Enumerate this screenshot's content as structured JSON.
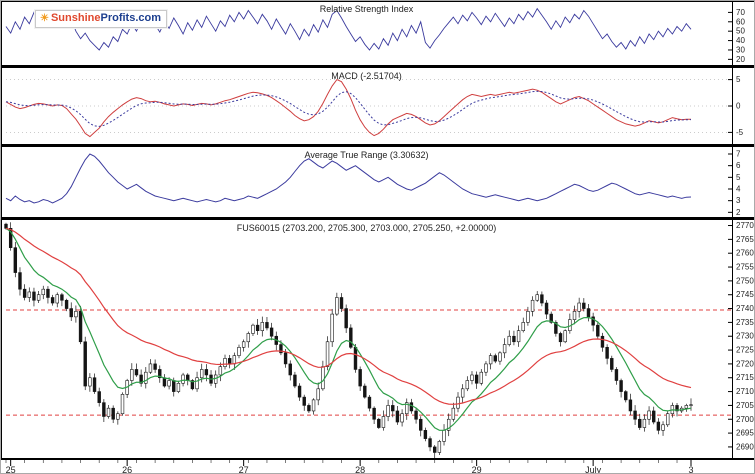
{
  "logo": {
    "part1": "Sunshine",
    "part2": "Profits.com",
    "sun": "☀"
  },
  "colors": {
    "rsi_line": "#3b3b9e",
    "macd_line": "#cf3f3f",
    "macd_signal": "#3b3b9e",
    "atr_line": "#3b3b9e",
    "candle_up": "#ffffff",
    "candle_down": "#151515",
    "candle_stroke": "#151515",
    "ema_fast": "#2f9e49",
    "ema_slow": "#e04040",
    "level": "#e04040",
    "grid": "#bbbbbb",
    "axis": "#000000",
    "text": "#222222"
  },
  "x_axis": {
    "tick_labels": [
      "25",
      "26",
      "27",
      "28",
      "29",
      "July",
      "3"
    ],
    "tick_indices": [
      1,
      26,
      51,
      76,
      101,
      126,
      147
    ]
  },
  "chart_data": {
    "type": "multi-panel-financial",
    "panels": [
      {
        "id": "rsi",
        "title": "Relative Strength Index",
        "ymin": 14,
        "ymax": 80,
        "yticks": [
          70,
          60,
          50,
          40,
          30,
          20
        ],
        "values": [
          55,
          48,
          60,
          52,
          65,
          58,
          70,
          62,
          55,
          66,
          59,
          68,
          61,
          54,
          63,
          50,
          42,
          48,
          40,
          35,
          30,
          38,
          33,
          44,
          39,
          52,
          47,
          58,
          50,
          62,
          55,
          65,
          57,
          49,
          60,
          53,
          64,
          56,
          47,
          59,
          51,
          62,
          54,
          66,
          58,
          50,
          61,
          55,
          67,
          60,
          70,
          63,
          72,
          65,
          58,
          68,
          61,
          52,
          63,
          55,
          47,
          58,
          50,
          41,
          52,
          45,
          57,
          49,
          62,
          54,
          68,
          72,
          64,
          55,
          47,
          39,
          44,
          36,
          30,
          37,
          31,
          42,
          35,
          48,
          40,
          52,
          44,
          56,
          48,
          60,
          38,
          32,
          40,
          46,
          53,
          59,
          65,
          58,
          67,
          61,
          70,
          64,
          57,
          66,
          60,
          69,
          62,
          55,
          64,
          58,
          68,
          62,
          71,
          65,
          74,
          67,
          60,
          52,
          61,
          54,
          65,
          59,
          68,
          63,
          72,
          66,
          58,
          50,
          42,
          47,
          39,
          33,
          38,
          31,
          40,
          34,
          44,
          37,
          47,
          41,
          50,
          44,
          53,
          47,
          55,
          50,
          58,
          52
        ]
      },
      {
        "id": "macd",
        "title": "MACD (-2.51704)",
        "ymin": -7.2,
        "ymax": 7.2,
        "yticks": [
          5,
          0,
          -5
        ],
        "signal_ema_span": 7,
        "values": [
          0.8,
          0.3,
          -0.2,
          -0.5,
          -0.3,
          0.0,
          0.3,
          0.5,
          0.4,
          0.2,
          0.0,
          0.2,
          0.1,
          -0.5,
          -1.5,
          -2.5,
          -3.8,
          -5.2,
          -5.8,
          -5.0,
          -4.2,
          -3.0,
          -2.0,
          -1.2,
          -0.5,
          0.2,
          0.8,
          1.3,
          1.6,
          1.4,
          1.0,
          0.8,
          0.9,
          0.7,
          0.4,
          0.2,
          0.0,
          0.2,
          0.4,
          0.3,
          0.1,
          0.3,
          0.5,
          0.4,
          0.2,
          0.4,
          0.7,
          1.0,
          1.2,
          1.5,
          1.8,
          2.1,
          2.4,
          2.6,
          2.5,
          2.3,
          2.0,
          1.6,
          1.0,
          0.4,
          -0.3,
          -1.0,
          -1.8,
          -2.4,
          -2.8,
          -2.6,
          -2.0,
          -1.0,
          0.5,
          2.2,
          3.8,
          5.0,
          4.6,
          3.2,
          1.4,
          -0.8,
          -2.6,
          -4.0,
          -5.0,
          -5.6,
          -5.2,
          -4.4,
          -3.4,
          -2.6,
          -2.2,
          -1.8,
          -1.4,
          -1.6,
          -2.0,
          -2.6,
          -3.2,
          -3.6,
          -3.4,
          -2.8,
          -2.0,
          -1.2,
          -0.4,
          0.4,
          1.2,
          1.8,
          2.2,
          2.0,
          1.8,
          2.0,
          2.2,
          2.0,
          2.2,
          2.4,
          2.6,
          2.4,
          2.6,
          2.8,
          3.0,
          3.2,
          3.0,
          2.6,
          2.0,
          1.4,
          0.8,
          0.4,
          0.8,
          1.2,
          1.6,
          1.8,
          1.4,
          1.0,
          0.4,
          -0.2,
          -0.8,
          -1.4,
          -2.0,
          -2.6,
          -3.0,
          -3.4,
          -3.6,
          -3.8,
          -3.6,
          -3.2,
          -2.8,
          -3.0,
          -3.2,
          -3.0,
          -2.6,
          -2.2,
          -2.4,
          -2.6,
          -2.5,
          -2.52
        ]
      },
      {
        "id": "atr",
        "title": "Average True Range (3.30632)",
        "ymin": 1.6,
        "ymax": 7.6,
        "yticks": [
          7,
          6,
          5,
          4,
          3,
          2
        ],
        "values": [
          3.2,
          3.0,
          3.4,
          3.1,
          2.9,
          3.0,
          2.8,
          2.9,
          3.1,
          3.0,
          2.8,
          3.0,
          3.2,
          3.6,
          4.2,
          5.0,
          5.8,
          6.5,
          7.0,
          6.8,
          6.4,
          5.9,
          5.4,
          5.0,
          4.6,
          4.3,
          4.0,
          4.2,
          4.4,
          4.1,
          3.8,
          3.6,
          3.4,
          3.3,
          3.2,
          3.1,
          3.0,
          3.1,
          3.2,
          3.1,
          3.0,
          2.9,
          3.0,
          3.1,
          3.0,
          2.9,
          3.0,
          3.2,
          3.1,
          3.0,
          3.1,
          3.2,
          3.4,
          3.3,
          3.2,
          3.4,
          3.6,
          3.8,
          4.0,
          4.3,
          4.6,
          5.0,
          5.5,
          6.0,
          6.4,
          6.6,
          6.3,
          6.0,
          5.8,
          6.1,
          6.4,
          6.2,
          5.9,
          5.6,
          5.8,
          6.0,
          5.7,
          5.4,
          5.1,
          4.8,
          4.6,
          4.8,
          5.0,
          4.7,
          4.4,
          4.2,
          4.0,
          3.9,
          4.1,
          4.3,
          4.5,
          4.8,
          5.1,
          5.4,
          5.2,
          4.9,
          4.6,
          4.3,
          4.0,
          3.8,
          3.6,
          3.5,
          3.4,
          3.3,
          3.4,
          3.5,
          3.4,
          3.3,
          3.2,
          3.1,
          3.0,
          3.1,
          3.2,
          3.1,
          3.0,
          3.1,
          3.2,
          3.4,
          3.6,
          3.8,
          4.0,
          4.2,
          4.4,
          4.3,
          4.1,
          3.9,
          3.8,
          3.9,
          4.1,
          4.3,
          4.5,
          4.4,
          4.2,
          4.0,
          3.8,
          3.6,
          3.5,
          3.6,
          3.7,
          3.6,
          3.5,
          3.4,
          3.3,
          3.4,
          3.3,
          3.2,
          3.3,
          3.31
        ]
      },
      {
        "id": "price",
        "title": "FUS60015 (2703.200, 2705.300, 2703.000, 2705.250, +2.00000)",
        "ymin": 2686,
        "ymax": 2772,
        "yticks": [
          2770,
          2765,
          2760,
          2755,
          2750,
          2745,
          2740,
          2735,
          2730,
          2725,
          2720,
          2715,
          2710,
          2705,
          2700,
          2695,
          2690
        ],
        "levels": [
          2739.5,
          2701.5
        ],
        "ema_fast_span": 10,
        "ema_slow_span": 32,
        "closes": [
          2769,
          2762,
          2753,
          2747,
          2744,
          2746,
          2743,
          2745,
          2747,
          2744,
          2742,
          2745,
          2743,
          2740,
          2737,
          2739,
          2728,
          2712,
          2715,
          2710,
          2706,
          2701,
          2704,
          2700,
          2702,
          2709,
          2714,
          2718,
          2716,
          2713,
          2717,
          2720,
          2718,
          2715,
          2712,
          2714,
          2710,
          2713,
          2716,
          2714,
          2711,
          2715,
          2718,
          2716,
          2713,
          2716,
          2719,
          2722,
          2720,
          2723,
          2726,
          2728,
          2731,
          2734,
          2732,
          2735,
          2733,
          2730,
          2727,
          2724,
          2720,
          2716,
          2712,
          2708,
          2705,
          2703,
          2707,
          2711,
          2719,
          2728,
          2738,
          2744,
          2740,
          2733,
          2726,
          2718,
          2712,
          2708,
          2704,
          2700,
          2697,
          2701,
          2705,
          2703,
          2699,
          2702,
          2706,
          2703,
          2700,
          2696,
          2693,
          2690,
          2688,
          2692,
          2696,
          2700,
          2704,
          2708,
          2711,
          2714,
          2716,
          2713,
          2717,
          2720,
          2723,
          2721,
          2724,
          2727,
          2730,
          2728,
          2732,
          2735,
          2739,
          2743,
          2745,
          2742,
          2738,
          2735,
          2731,
          2728,
          2732,
          2736,
          2739,
          2742,
          2740,
          2737,
          2734,
          2730,
          2726,
          2722,
          2718,
          2714,
          2710,
          2707,
          2703,
          2700,
          2697,
          2700,
          2703,
          2699,
          2696,
          2698,
          2702,
          2705,
          2703,
          2704,
          2705,
          2705.25
        ]
      }
    ]
  }
}
